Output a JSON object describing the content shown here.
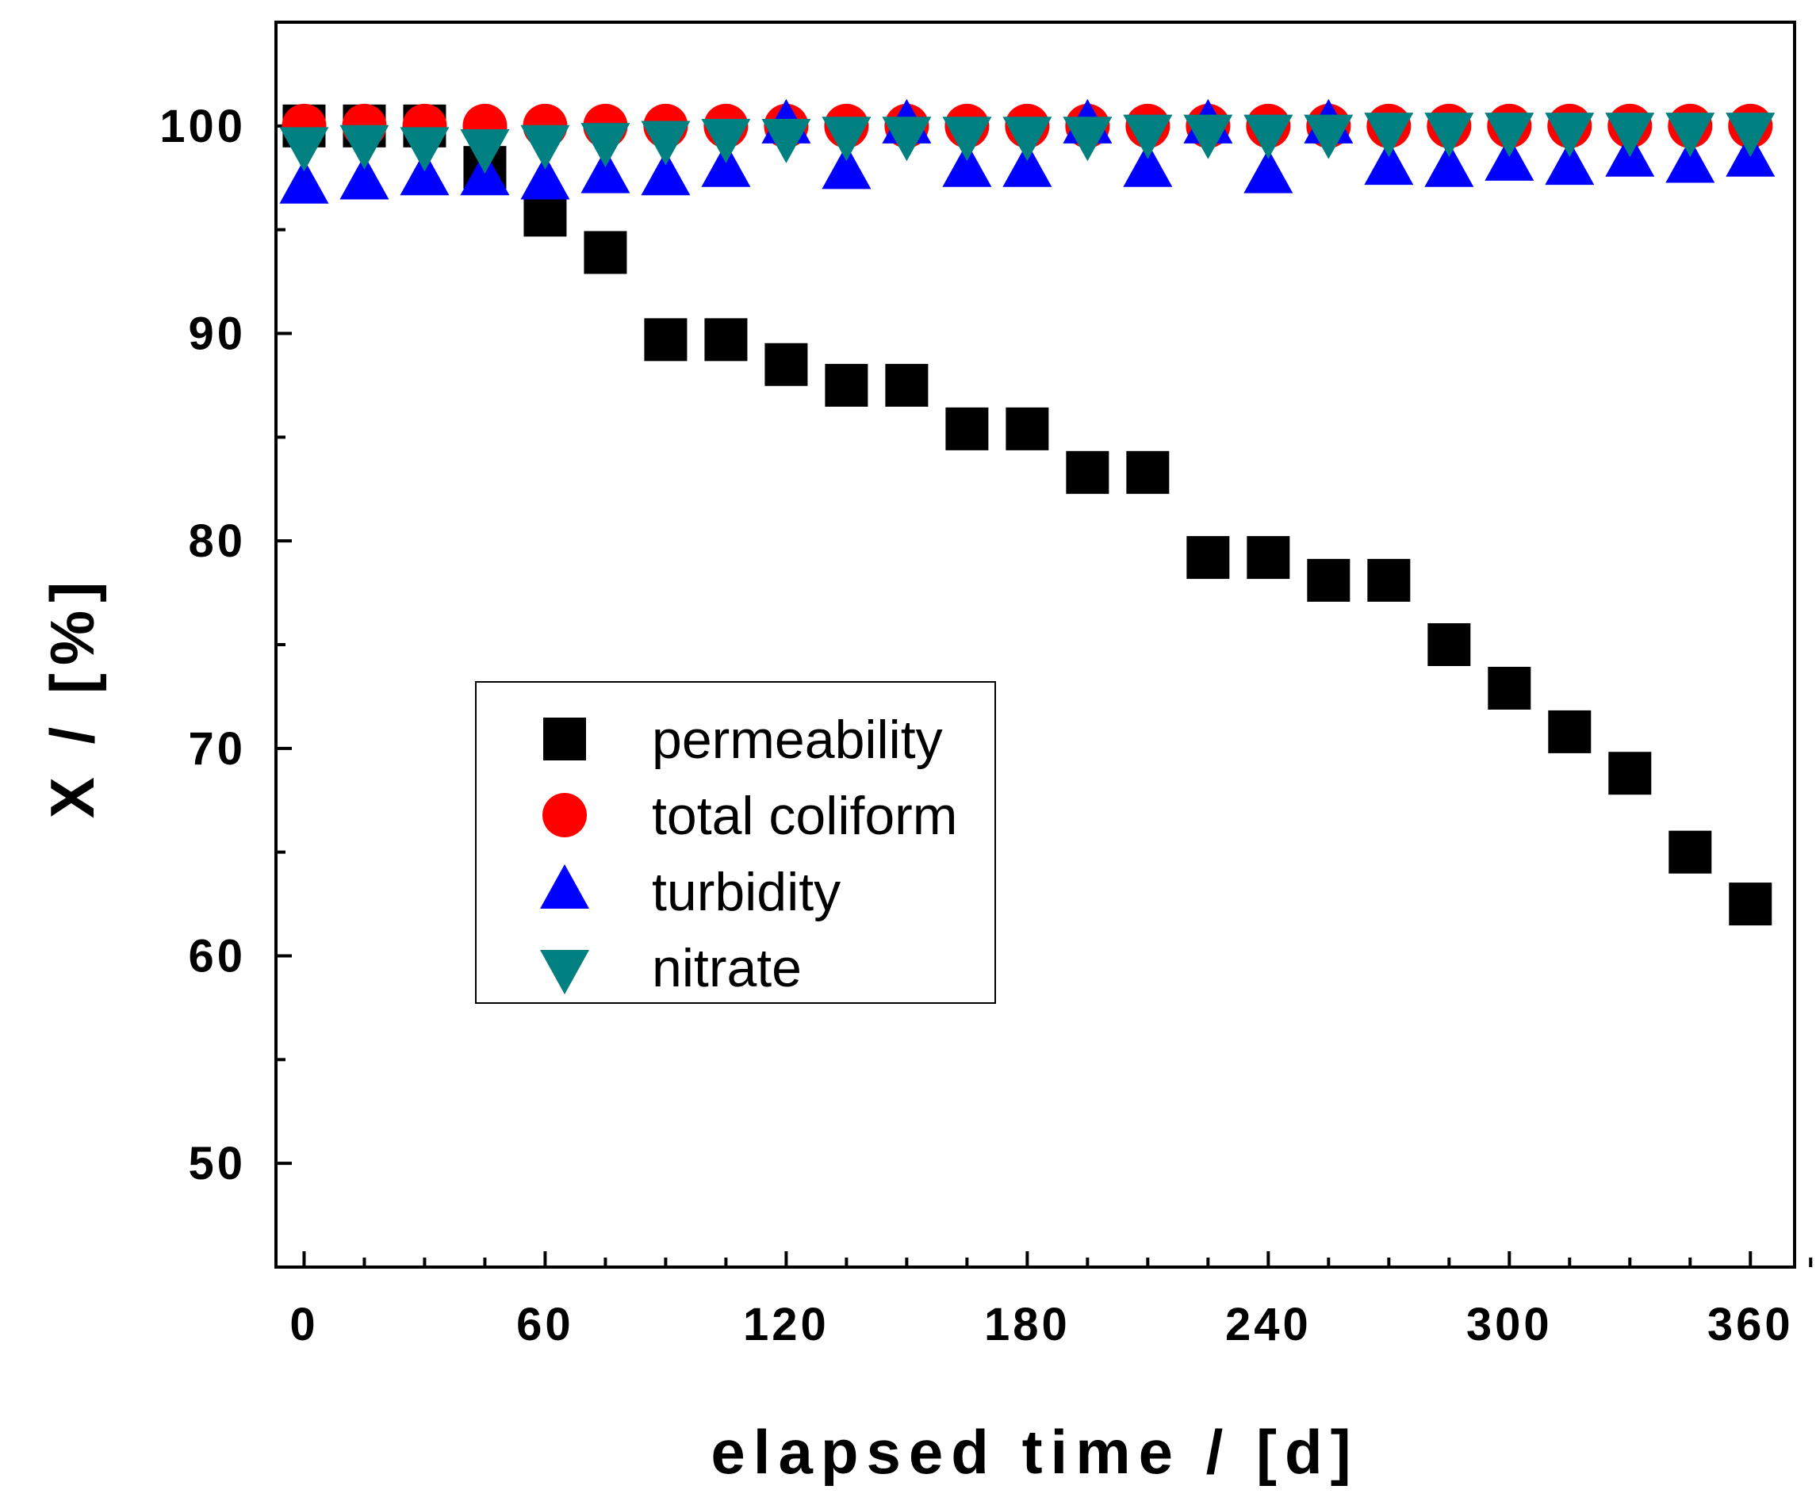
{
  "chart_data": {
    "type": "scatter",
    "xlabel": "elapsed time / [d]",
    "ylabel": "X / [%]",
    "xlim": [
      -7,
      371
    ],
    "ylim": [
      45,
      105
    ],
    "xticks": [
      0,
      60,
      120,
      180,
      240,
      300,
      360
    ],
    "yticks": [
      50,
      60,
      70,
      80,
      90,
      100
    ],
    "x": [
      0,
      15,
      30,
      45,
      60,
      75,
      90,
      105,
      120,
      135,
      150,
      165,
      180,
      195,
      210,
      225,
      240,
      255,
      270,
      285,
      300,
      315,
      330,
      345,
      360
    ],
    "legend_position": "center-left",
    "series": [
      {
        "name": "permeability",
        "marker": "square",
        "color": "#000000",
        "values": [
          100,
          100,
          100,
          98,
          95.7,
          93.9,
          89.7,
          89.7,
          88.5,
          87.5,
          87.5,
          85.4,
          85.4,
          83.3,
          83.3,
          79.2,
          79.2,
          78.1,
          78.1,
          75,
          72.9,
          70.8,
          68.8,
          65,
          62.5
        ]
      },
      {
        "name": "total coliform",
        "marker": "circle",
        "color": "#ff0000",
        "values": [
          100,
          100,
          100,
          100,
          100,
          100,
          100,
          100,
          100,
          100,
          100,
          100,
          100,
          100,
          100,
          100,
          100,
          100,
          100,
          100,
          100,
          100,
          100,
          100,
          100
        ]
      },
      {
        "name": "turbidity",
        "marker": "triangle-up",
        "color": "#0000ff",
        "values": [
          97.1,
          97.3,
          97.5,
          97.5,
          97.3,
          97.6,
          97.5,
          97.9,
          100,
          97.8,
          100,
          97.9,
          97.9,
          100,
          97.9,
          100,
          97.6,
          100,
          98.0,
          97.9,
          98.2,
          98.0,
          98.4,
          98.1,
          98.4
        ]
      },
      {
        "name": "nitrate",
        "marker": "triangle-down",
        "color": "#008080",
        "values": [
          99.1,
          99.2,
          99.1,
          99.0,
          99.2,
          99.3,
          99.4,
          99.5,
          99.5,
          99.6,
          99.6,
          99.6,
          99.6,
          99.6,
          99.7,
          99.7,
          99.7,
          99.7,
          99.8,
          99.8,
          99.8,
          99.8,
          99.8,
          99.8,
          99.8
        ]
      }
    ]
  }
}
